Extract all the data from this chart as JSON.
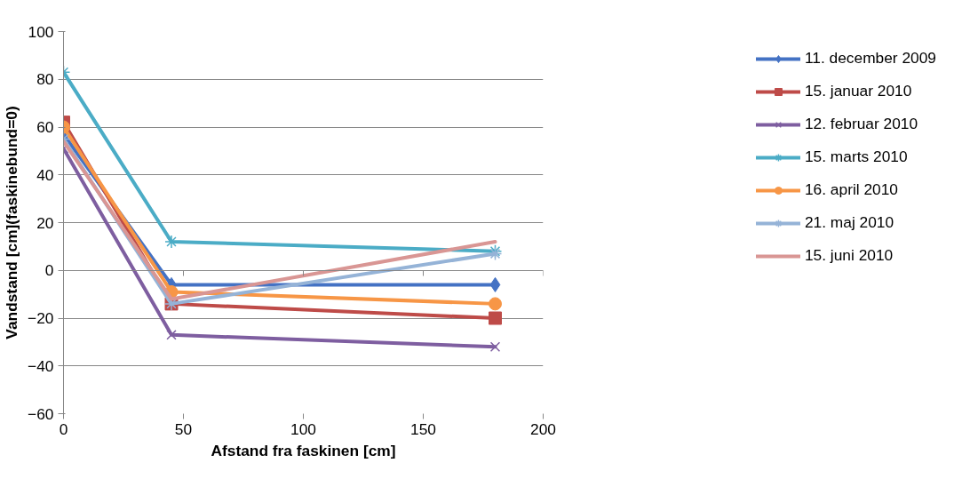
{
  "chart_data": {
    "type": "line",
    "xlabel": "Afstand fra faskinen [cm]",
    "ylabel": "Vandstand [cm](faskinebund=0)",
    "x": [
      0,
      45,
      180
    ],
    "series": [
      {
        "name": "11. december 2009",
        "color": "#4472c4",
        "marker": "diamond",
        "values": [
          57,
          -6,
          -6
        ]
      },
      {
        "name": "15. januar 2010",
        "color": "#be4b48",
        "marker": "square",
        "values": [
          62,
          -14,
          -20
        ]
      },
      {
        "name": "12. februar 2010",
        "color": "#7e5ea0",
        "marker": "x",
        "values": [
          51,
          -27,
          -32
        ]
      },
      {
        "name": "15. marts 2010",
        "color": "#4bacc6",
        "marker": "cross",
        "values": [
          83,
          12,
          8
        ]
      },
      {
        "name": "16. april 2010",
        "color": "#f79646",
        "marker": "circle",
        "values": [
          60,
          -9,
          -14
        ]
      },
      {
        "name": "21. maj 2010",
        "color": "#95b3d7",
        "marker": "cross",
        "values": [
          55,
          -14,
          7
        ]
      },
      {
        "name": "15. juni 2010",
        "color": "#d99694",
        "marker": "none",
        "values": [
          54,
          -12,
          12
        ]
      }
    ],
    "xlim": [
      0,
      200
    ],
    "xticks": [
      0,
      50,
      100,
      150,
      200
    ],
    "ylim": [
      -60,
      100
    ],
    "yticks": [
      -60,
      -40,
      -20,
      0,
      20,
      40,
      60,
      80,
      100
    ],
    "grid": "y",
    "legend": "right",
    "line_style": "solid"
  }
}
